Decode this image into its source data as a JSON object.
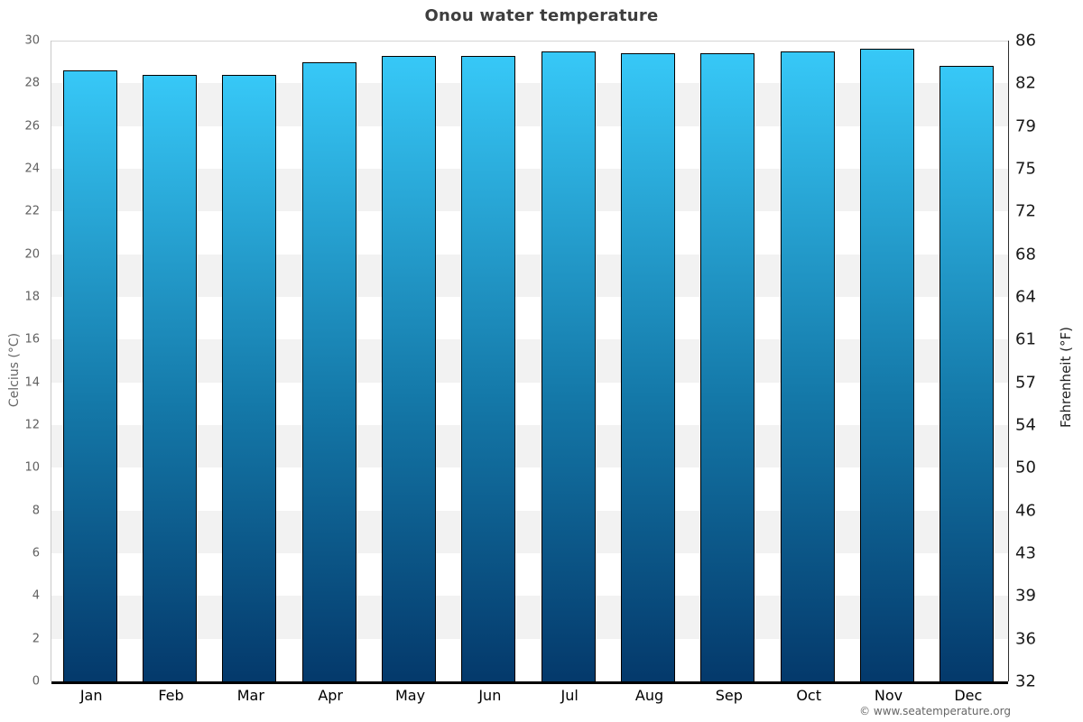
{
  "chart_data": {
    "type": "bar",
    "title": "Onou water temperature",
    "categories": [
      "Jan",
      "Feb",
      "Mar",
      "Apr",
      "May",
      "Jun",
      "Jul",
      "Aug",
      "Sep",
      "Oct",
      "Nov",
      "Dec"
    ],
    "values": [
      28.6,
      28.4,
      28.4,
      29.0,
      29.3,
      29.3,
      29.5,
      29.4,
      29.4,
      29.5,
      29.6,
      28.8
    ],
    "ylabel_left": "Celcius (°C)",
    "ylabel_right": "Fahrenheit (°F)",
    "ylim": [
      0,
      30
    ],
    "ytick_step": 2,
    "left_ticks": [
      "30",
      "28",
      "26",
      "24",
      "22",
      "20",
      "18",
      "16",
      "14",
      "12",
      "10",
      "8",
      "6",
      "4",
      "2",
      "0"
    ],
    "right_ticks": [
      "86",
      "82",
      "79",
      "75",
      "72",
      "68",
      "64",
      "61",
      "57",
      "54",
      "50",
      "46",
      "43",
      "39",
      "36",
      "32"
    ],
    "xlabel": "",
    "legend": "none",
    "grid": "alternating horizontal bands every 2°C",
    "colors": {
      "bar_gradient_top": "#37c8f7",
      "bar_gradient_mid": "#1478a8",
      "bar_gradient_bottom": "#04396b",
      "bar_border": "#000000",
      "band_gray": "#f2f2f2",
      "band_white": "#ffffff",
      "title_text": "#3e3e3e",
      "left_tick_text": "#606060",
      "right_tick_text": "#1a1a1a",
      "baseline": "#000000"
    }
  },
  "footer": {
    "copyright": "© www.seatemperature.org"
  }
}
